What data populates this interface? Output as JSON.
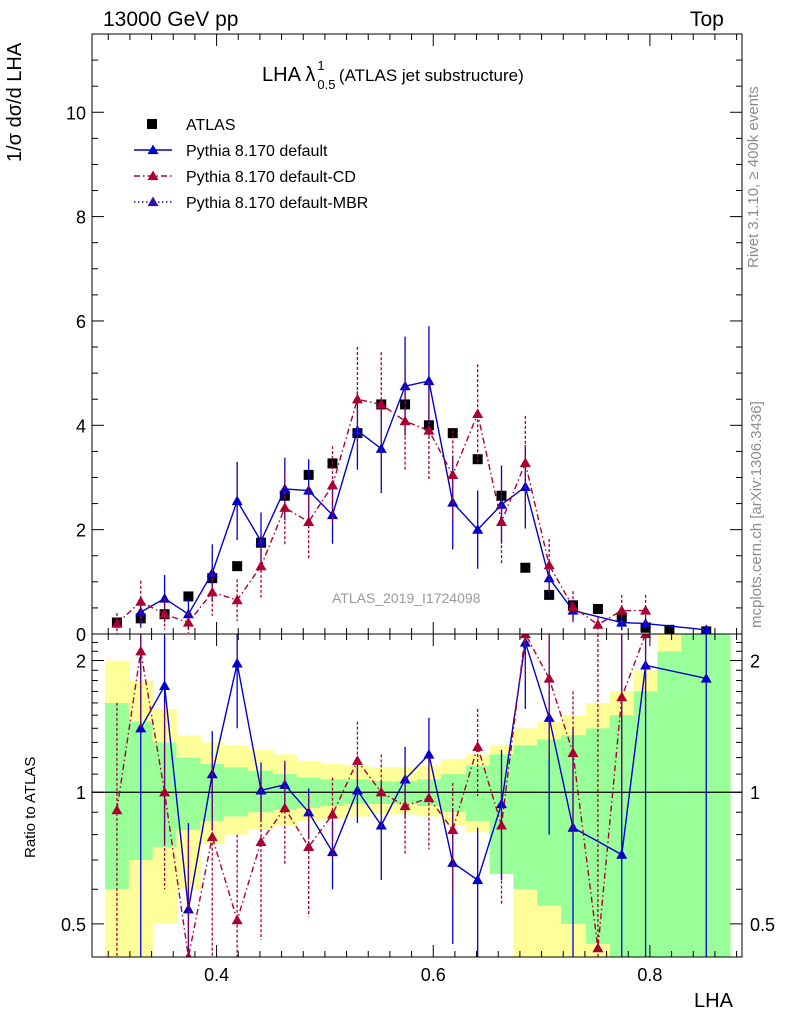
{
  "header": {
    "energy_label": "13000 GeV pp",
    "top_label": "Top",
    "title_main": "LHA λ",
    "title_sup": "1",
    "title_sub": "0.5",
    "title_tail": "(ATLAS jet substructure)",
    "side_label_top": "Rivet 3.1.10, ≥ 400k events",
    "side_label_bottom": "mcplots.cern.ch [arXiv:1306.3436]",
    "analysis_id": "ATLAS_2019_I1724098",
    "ylabel_main": "1/σ dσ/d LHA",
    "ylabel_ratio": "Ratio to ATLAS",
    "xlabel": "LHA"
  },
  "chart_data": {
    "type": "scatter",
    "x_label": "LHA",
    "x_range": [
      0.285,
      0.885
    ],
    "x_ticks": [
      0.4,
      0.6,
      0.8
    ],
    "main": {
      "y_range": [
        0,
        11.5
      ],
      "y_ticks": [
        0,
        2,
        4,
        6,
        8,
        10
      ],
      "legend_position": "top-left",
      "series": [
        {
          "name": "ATLAS",
          "style": "data",
          "color": "#000000",
          "x": [
            0.308,
            0.33,
            0.352,
            0.374,
            0.396,
            0.419,
            0.441,
            0.463,
            0.485,
            0.507,
            0.53,
            0.552,
            0.574,
            0.596,
            0.618,
            0.641,
            0.663,
            0.685,
            0.707,
            0.729,
            0.752,
            0.774,
            0.796,
            0.818,
            0.852
          ],
          "y": [
            0.22,
            0.3,
            0.38,
            0.72,
            1.07,
            1.3,
            1.75,
            2.65,
            3.05,
            3.27,
            3.85,
            4.4,
            4.4,
            4.0,
            3.85,
            3.35,
            2.65,
            1.27,
            0.75,
            0.55,
            0.48,
            0.32,
            0.12,
            0.08,
            0.05
          ]
        },
        {
          "name": "Pythia 8.170 default",
          "style": "solid",
          "color": "#0000cc",
          "x": [
            0.33,
            0.352,
            0.374,
            0.396,
            0.419,
            0.441,
            0.463,
            0.485,
            0.507,
            0.53,
            0.552,
            0.574,
            0.596,
            0.618,
            0.641,
            0.663,
            0.685,
            0.707,
            0.729,
            0.774,
            0.796,
            0.852
          ],
          "y": [
            0.42,
            0.68,
            0.38,
            1.17,
            2.55,
            1.78,
            2.78,
            2.75,
            2.28,
            3.9,
            3.55,
            4.75,
            4.85,
            2.52,
            2.0,
            2.48,
            2.82,
            1.07,
            0.45,
            0.22,
            0.2,
            0.08
          ],
          "err": [
            0.3,
            0.45,
            0.3,
            0.55,
            0.75,
            0.55,
            0.6,
            0.6,
            0.55,
            0.75,
            0.85,
            0.95,
            1.05,
            0.9,
            0.75,
            0.75,
            0.8,
            0.35,
            0.2,
            0.15,
            0.12,
            0.05
          ]
        },
        {
          "name": "Pythia 8.170 default-CD",
          "style": "dashdot",
          "color": "#aa0033",
          "x": [
            0.308,
            0.33,
            0.352,
            0.374,
            0.396,
            0.419,
            0.441,
            0.463,
            0.485,
            0.507,
            0.53,
            0.552,
            0.574,
            0.596,
            0.618,
            0.641,
            0.663,
            0.685,
            0.707,
            0.729,
            0.752,
            0.774,
            0.796
          ],
          "y": [
            0.2,
            0.62,
            0.38,
            0.22,
            0.8,
            0.65,
            1.3,
            2.42,
            2.15,
            2.85,
            4.5,
            4.4,
            4.08,
            3.9,
            3.05,
            4.22,
            2.15,
            3.28,
            1.32,
            0.52,
            0.18,
            0.45,
            0.45
          ],
          "err": [
            0.2,
            0.4,
            0.3,
            0.2,
            0.45,
            0.4,
            0.6,
            0.7,
            0.7,
            0.75,
            1.0,
            1.0,
            0.95,
            0.95,
            0.85,
            0.95,
            0.8,
            0.9,
            0.5,
            0.3,
            0.15,
            0.3,
            0.3
          ]
        },
        {
          "name": "Pythia 8.170 default-MBR",
          "style": "dotted",
          "color": "#3311aa",
          "x": [],
          "y": []
        }
      ]
    },
    "ratio": {
      "y_label": "Ratio to ATLAS",
      "y_scale": "log",
      "y_range": [
        0.42,
        2.3
      ],
      "y_ticks": [
        0.5,
        1,
        2
      ],
      "reference_line": 1,
      "bands": {
        "edges": [
          0.297,
          0.319,
          0.341,
          0.363,
          0.385,
          0.407,
          0.429,
          0.452,
          0.474,
          0.496,
          0.518,
          0.541,
          0.563,
          0.585,
          0.607,
          0.63,
          0.652,
          0.674,
          0.696,
          0.718,
          0.741,
          0.763,
          0.785,
          0.807,
          0.829,
          0.852,
          0.874
        ],
        "yellow_lo": [
          0.3,
          0.4,
          0.5,
          0.6,
          0.76,
          0.8,
          0.82,
          0.84,
          0.86,
          0.87,
          0.88,
          0.89,
          0.89,
          0.88,
          0.84,
          0.81,
          0.78,
          0.3,
          0.3,
          0.3,
          0.3,
          0.3,
          0.3,
          0.3,
          0.3,
          0.3
        ],
        "yellow_hi": [
          2.0,
          1.8,
          1.55,
          1.35,
          1.3,
          1.28,
          1.25,
          1.22,
          1.18,
          1.16,
          1.15,
          1.14,
          1.14,
          1.15,
          1.19,
          1.22,
          1.28,
          1.4,
          1.45,
          1.5,
          1.6,
          1.7,
          1.9,
          2.3,
          2.3,
          2.3
        ],
        "green_lo": [
          0.6,
          0.7,
          0.75,
          0.82,
          0.86,
          0.88,
          0.9,
          0.91,
          0.92,
          0.93,
          0.94,
          0.94,
          0.94,
          0.93,
          0.9,
          0.86,
          0.65,
          0.6,
          0.55,
          0.5,
          0.45,
          0.4,
          0.4,
          0.4,
          0.4,
          0.4
        ],
        "green_hi": [
          1.6,
          1.45,
          1.3,
          1.2,
          1.16,
          1.14,
          1.12,
          1.1,
          1.08,
          1.07,
          1.07,
          1.06,
          1.06,
          1.07,
          1.1,
          1.15,
          1.22,
          1.28,
          1.32,
          1.35,
          1.4,
          1.5,
          1.7,
          2.1,
          2.3,
          2.3
        ]
      },
      "series": [
        {
          "name": "Pythia 8.170 default",
          "color": "#0000cc",
          "x": [
            0.33,
            0.352,
            0.374,
            0.396,
            0.419,
            0.441,
            0.463,
            0.485,
            0.507,
            0.53,
            0.552,
            0.574,
            0.596,
            0.618,
            0.641,
            0.663,
            0.685,
            0.707,
            0.729,
            0.774,
            0.796,
            0.852
          ],
          "y": [
            1.4,
            1.75,
            0.54,
            1.1,
            1.97,
            1.01,
            1.04,
            0.9,
            0.73,
            1.01,
            0.84,
            1.07,
            1.22,
            0.69,
            0.63,
            0.94,
            2.2,
            1.48,
            0.83,
            0.72,
            1.95,
            1.82
          ],
          "lo": [
            0.3,
            0.76,
            0.3,
            0.82,
            1.4,
            0.86,
            0.91,
            0.78,
            0.6,
            0.85,
            0.63,
            0.87,
            0.98,
            0.45,
            0.42,
            0.63,
            1.55,
            0.8,
            0.3,
            0.3,
            0.3,
            0.3
          ],
          "hi": [
            2.3,
            2.3,
            0.85,
            1.38,
            2.3,
            1.17,
            1.17,
            1.02,
            0.86,
            1.17,
            1.06,
            1.27,
            1.48,
            0.92,
            0.83,
            1.25,
            2.3,
            2.3,
            1.4,
            2.3,
            2.3,
            2.3
          ]
        },
        {
          "name": "Pythia 8.170 default-CD",
          "color": "#aa0033",
          "x": [
            0.308,
            0.33,
            0.352,
            0.374,
            0.396,
            0.419,
            0.441,
            0.463,
            0.485,
            0.507,
            0.53,
            0.552,
            0.574,
            0.596,
            0.618,
            0.641,
            0.663,
            0.685,
            0.707,
            0.729,
            0.752,
            0.774,
            0.796
          ],
          "y": [
            0.91,
            2.1,
            1.0,
            0.4,
            0.79,
            0.51,
            0.77,
            0.92,
            0.75,
            0.89,
            1.18,
            1.0,
            0.93,
            0.97,
            0.82,
            1.27,
            0.84,
            2.55,
            1.82,
            1.23,
            0.44,
            1.65,
            2.6
          ],
          "lo": [
            0.3,
            1.4,
            0.6,
            0.3,
            0.42,
            0.3,
            0.46,
            0.68,
            0.52,
            0.7,
            0.9,
            0.78,
            0.72,
            0.74,
            0.58,
            0.98,
            0.55,
            1.8,
            1.2,
            0.8,
            0.3,
            0.9,
            1.5
          ],
          "hi": [
            1.6,
            2.3,
            1.6,
            0.8,
            1.2,
            0.8,
            1.1,
            1.18,
            0.98,
            1.08,
            1.45,
            1.22,
            1.15,
            1.2,
            1.05,
            1.55,
            1.15,
            2.3,
            2.3,
            1.7,
            2.3,
            2.3,
            2.3
          ]
        }
      ]
    }
  }
}
